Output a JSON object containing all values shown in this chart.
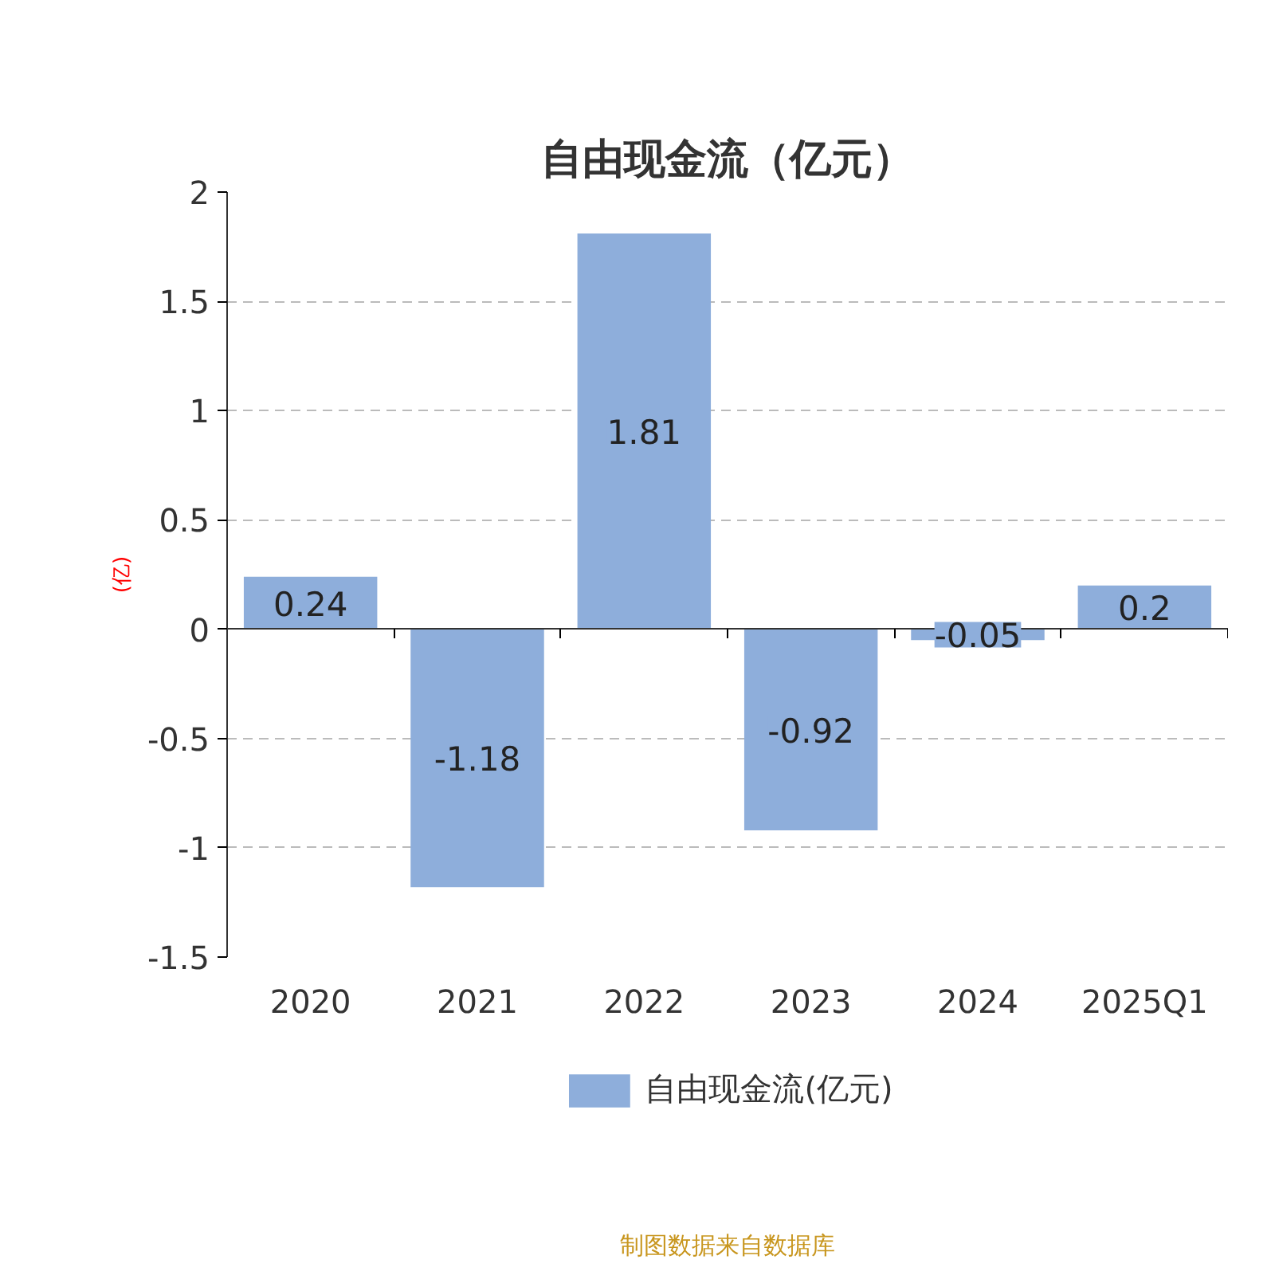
{
  "chart_data": {
    "type": "bar",
    "title": "自由现金流（亿元）",
    "ylabel": "(亿)",
    "categories": [
      "2020",
      "2021",
      "2022",
      "2023",
      "2024",
      "2025Q1"
    ],
    "series": [
      {
        "name": "自由现金流(亿元)",
        "color": "#8eaedb",
        "values": [
          0.24,
          -1.18,
          1.81,
          -0.92,
          -0.05,
          0.2
        ]
      }
    ],
    "ylim": [
      -1.5,
      2
    ],
    "yticks": [
      -1.5,
      -1,
      -0.5,
      0,
      0.5,
      1,
      1.5,
      2
    ],
    "grid": "y",
    "legend": "bottom",
    "data_labels": true,
    "annotations": [
      "制图数据来自数据库"
    ]
  }
}
